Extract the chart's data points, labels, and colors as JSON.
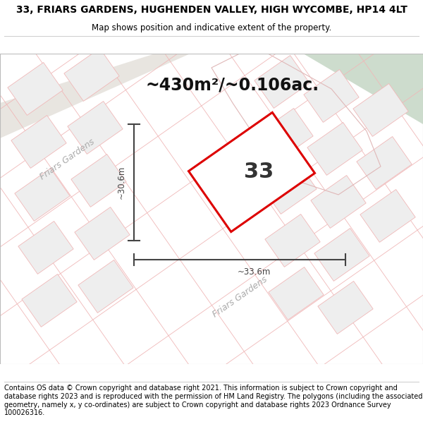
{
  "title_line1": "33, FRIARS GARDENS, HUGHENDEN VALLEY, HIGH WYCOMBE, HP14 4LT",
  "title_line2": "Map shows position and indicative extent of the property.",
  "area_text": "~430m²/~0.106ac.",
  "plot_number": "33",
  "dim_vertical": "~30.6m",
  "dim_horizontal": "~33.6m",
  "road_label1": "Friars Gardens",
  "road_label2": "Friars Gardens",
  "footer_text": "Contains OS data © Crown copyright and database right 2021. This information is subject to Crown copyright and database rights 2023 and is reproduced with the permission of HM Land Registry. The polygons (including the associated geometry, namely x, y co-ordinates) are subject to Crown copyright and database rights 2023 Ordnance Survey 100026316.",
  "map_bg": "#f5f4f2",
  "road_fill": "#e8e5e0",
  "road_label_color": "#aaaaaa",
  "green_area_color": "#cddccd",
  "green_outline_color": "#e0b8b8",
  "plot_fill": "#ffffff",
  "plot_outline_color": "#dd0000",
  "neighbor_outline_color": "#f0b8b8",
  "neighbor_fill": "#eeeeee",
  "dim_line_color": "#444444",
  "title_fontsize": 10,
  "subtitle_fontsize": 8.5,
  "area_fontsize": 17,
  "plot_label_fontsize": 22,
  "footer_fontsize": 7.0,
  "road_label_fontsize": 9
}
